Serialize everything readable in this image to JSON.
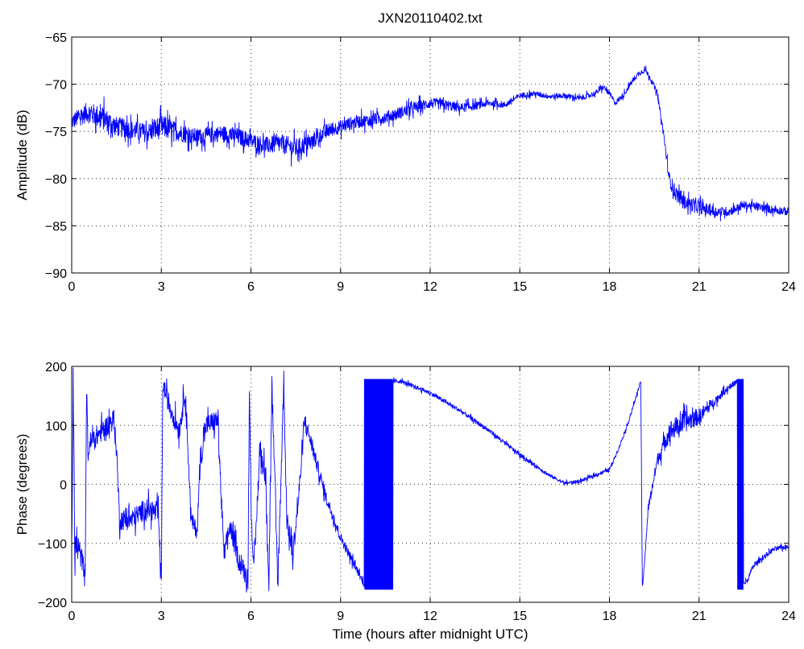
{
  "figure": {
    "title": "JXN20110402.txt"
  },
  "chart_data": [
    {
      "type": "line",
      "title": "JXN20110402.txt",
      "xlabel": "",
      "ylabel": "Amplitude (dB)",
      "xlim": [
        0,
        24
      ],
      "ylim": [
        -90,
        -65
      ],
      "xticks": [
        0,
        3,
        6,
        9,
        12,
        15,
        18,
        21,
        24
      ],
      "yticks": [
        -90,
        -85,
        -80,
        -75,
        -70,
        -65
      ],
      "xtick_labels": [
        "0",
        "3",
        "6",
        "9",
        "12",
        "15",
        "18",
        "21",
        "24"
      ],
      "ytick_labels": [
        "−90",
        "−85",
        "−80",
        "−75",
        "−70",
        "−65"
      ],
      "grid": true,
      "color": "#0000ff",
      "series": [
        {
          "x": [
            0,
            0.5,
            1,
            1.5,
            2,
            2.5,
            3,
            3.5,
            4,
            4.5,
            5,
            5.5,
            6,
            6.5,
            7,
            7.5,
            8,
            8.5,
            9,
            9.5,
            10,
            10.5,
            11,
            11.5,
            12,
            12.5,
            13,
            13.5,
            14,
            14.5,
            15,
            15.5,
            16,
            16.5,
            17,
            17.5,
            17.8,
            18,
            18.2,
            18.5,
            18.8,
            19,
            19.2,
            19.4,
            19.6,
            19.8,
            20,
            20.2,
            20.5,
            21,
            21.5,
            22,
            22.5,
            23,
            23.5,
            24
          ],
          "y": [
            -74,
            -73,
            -73.5,
            -74.5,
            -74.8,
            -75.2,
            -74.5,
            -75,
            -75.5,
            -75.5,
            -75.2,
            -75.5,
            -76,
            -76.5,
            -76.3,
            -76.8,
            -76.2,
            -75,
            -74.5,
            -74,
            -73.8,
            -73.5,
            -73,
            -72.5,
            -72,
            -72.2,
            -72.5,
            -72.3,
            -72,
            -72.2,
            -71.2,
            -71,
            -71.3,
            -71.2,
            -71.5,
            -71,
            -70.3,
            -71,
            -72,
            -71,
            -69.5,
            -68.8,
            -68.5,
            -69.5,
            -71,
            -75,
            -80,
            -81.5,
            -82.5,
            -83,
            -83.5,
            -83.5,
            -82.8,
            -83,
            -83.3,
            -83.5
          ],
          "noise": [
            1.2,
            1.5,
            1.8,
            1.5,
            1.4,
            1.4,
            1.8,
            1.4,
            1.2,
            1.2,
            1.2,
            1.3,
            1.2,
            1.3,
            1.4,
            1.5,
            1.2,
            1.1,
            1.0,
            1.0,
            0.9,
            0.9,
            0.9,
            0.9,
            0.8,
            0.8,
            0.7,
            0.6,
            0.5,
            0.5,
            0.4,
            0.4,
            0.4,
            0.4,
            0.4,
            0.4,
            0.4,
            0.4,
            0.4,
            0.4,
            0.4,
            0.4,
            0.4,
            0.4,
            0.4,
            0.6,
            1.0,
            1.2,
            1.0,
            1.0,
            0.8,
            0.7,
            0.6,
            0.6,
            0.6,
            0.6
          ]
        }
      ]
    },
    {
      "type": "line",
      "title": "",
      "xlabel": "Time (hours after midnight UTC)",
      "ylabel": "Phase (degrees)",
      "xlim": [
        0,
        24
      ],
      "ylim": [
        -200,
        200
      ],
      "xticks": [
        0,
        3,
        6,
        9,
        12,
        15,
        18,
        21,
        24
      ],
      "yticks": [
        -200,
        -100,
        0,
        100,
        200
      ],
      "xtick_labels": [
        "0",
        "3",
        "6",
        "9",
        "12",
        "15",
        "18",
        "21",
        "24"
      ],
      "ytick_labels": [
        "−200",
        "−100",
        "0",
        "100",
        "200"
      ],
      "grid": true,
      "color": "#0000ff",
      "series": [
        {
          "x": [
            0,
            0.05,
            0.1,
            0.3,
            0.45,
            0.5,
            0.55,
            0.6,
            1.0,
            1.4,
            1.5,
            1.6,
            2.0,
            2.5,
            2.9,
            3.0,
            3.05,
            3.3,
            3.6,
            3.8,
            3.9,
            4.0,
            4.2,
            4.3,
            4.5,
            4.9,
            5.0,
            5.1,
            5.3,
            5.6,
            5.9,
            5.95,
            6.0,
            6.1,
            6.3,
            6.5,
            6.6,
            6.7,
            6.9,
            7.1,
            7.2,
            7.4,
            7.6,
            7.8,
            8.5,
            9.0,
            9.5,
            9.8,
            9.85,
            10.0,
            10.2,
            10.4,
            10.6,
            10.7,
            11.0,
            12.0,
            13.0,
            14.0,
            15.0,
            16.0,
            16.5,
            17.0,
            17.5,
            18.0,
            18.3,
            18.6,
            18.9,
            19.05,
            19.1,
            19.12,
            19.3,
            19.6,
            20.0,
            20.5,
            21.0,
            21.5,
            22.0,
            22.3,
            22.35,
            22.4,
            22.6,
            22.8,
            23.0,
            23.5,
            24.0
          ],
          "y": [
            -110,
            170,
            -100,
            -120,
            -150,
            165,
            40,
            70,
            90,
            110,
            60,
            -60,
            -60,
            -40,
            -50,
            -170,
            170,
            130,
            90,
            160,
            50,
            -60,
            -80,
            40,
            100,
            110,
            -20,
            -120,
            -70,
            -130,
            -160,
            170,
            -30,
            -150,
            60,
            10,
            -170,
            170,
            -170,
            175,
            -60,
            -120,
            -20,
            110,
            -20,
            -90,
            -140,
            -170,
            175,
            -170,
            175,
            -170,
            175,
            175,
            175,
            155,
            125,
            90,
            50,
            15,
            2,
            5,
            15,
            25,
            60,
            100,
            150,
            175,
            -170,
            -170,
            -40,
            40,
            90,
            105,
            115,
            140,
            165,
            175,
            175,
            -170,
            -165,
            -140,
            -130,
            -110,
            -105
          ],
          "noise": [
            50,
            50,
            40,
            30,
            20,
            20,
            15,
            25,
            25,
            25,
            25,
            25,
            25,
            25,
            25,
            20,
            20,
            25,
            25,
            25,
            25,
            20,
            20,
            30,
            25,
            25,
            25,
            25,
            25,
            25,
            25,
            20,
            25,
            25,
            30,
            30,
            30,
            30,
            30,
            30,
            25,
            25,
            25,
            20,
            15,
            12,
            10,
            8,
            8,
            8,
            8,
            8,
            8,
            5,
            5,
            5,
            5,
            5,
            5,
            4,
            4,
            4,
            4,
            4,
            4,
            4,
            4,
            4,
            4,
            4,
            10,
            15,
            25,
            25,
            20,
            10,
            8,
            6,
            6,
            6,
            6,
            6,
            6,
            6,
            5
          ],
          "jump_bands": [
            [
              9.8,
              10.75
            ],
            [
              22.28,
              22.48
            ]
          ]
        }
      ]
    }
  ]
}
